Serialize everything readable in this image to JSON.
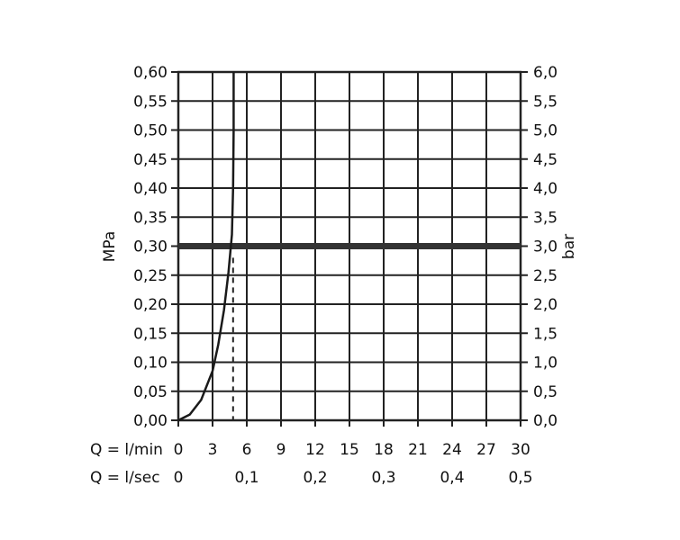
{
  "chart_data": {
    "type": "line",
    "left_axis": {
      "label": "MPa",
      "ylim": [
        0,
        0.6
      ],
      "ticks": [
        "0,00",
        "0,05",
        "0,10",
        "0,15",
        "0,20",
        "0,25",
        "0,30",
        "0,35",
        "0,40",
        "0,45",
        "0,50",
        "0,55",
        "0,60"
      ]
    },
    "right_axis": {
      "label": "bar",
      "ylim": [
        0,
        6
      ],
      "ticks": [
        "0,0",
        "0,5",
        "1,0",
        "1,5",
        "2,0",
        "2,5",
        "3,0",
        "3,5",
        "4,0",
        "4,5",
        "5,0",
        "5,5",
        "6,0"
      ]
    },
    "x_axis_lmin": {
      "label": "Q = l/min",
      "xlim": [
        0,
        30
      ],
      "ticks": [
        "0",
        "3",
        "6",
        "9",
        "12",
        "15",
        "18",
        "21",
        "24",
        "27",
        "30"
      ]
    },
    "x_axis_lsec": {
      "label": "Q = l/sec",
      "ticks": [
        "0",
        "0,1",
        "0,2",
        "0,3",
        "0,4",
        "0,5"
      ]
    },
    "series": [
      {
        "style": "solid-thin",
        "color": "#1a1a1a",
        "points": [
          [
            0,
            0
          ],
          [
            1,
            0.01
          ],
          [
            2,
            0.035
          ],
          [
            3,
            0.085
          ],
          [
            3.5,
            0.13
          ],
          [
            4,
            0.19
          ],
          [
            4.4,
            0.255
          ],
          [
            4.7,
            0.32
          ],
          [
            4.8,
            0.4
          ],
          [
            4.85,
            0.5
          ],
          [
            4.85,
            0.6
          ]
        ]
      }
    ],
    "reference_line": {
      "y": 0.3,
      "style": "thick",
      "color": "#333333"
    },
    "reference_drop": {
      "x": 4.8,
      "y": 0.28,
      "style": "dashed"
    },
    "grid": true,
    "grid_color": "#222222"
  }
}
